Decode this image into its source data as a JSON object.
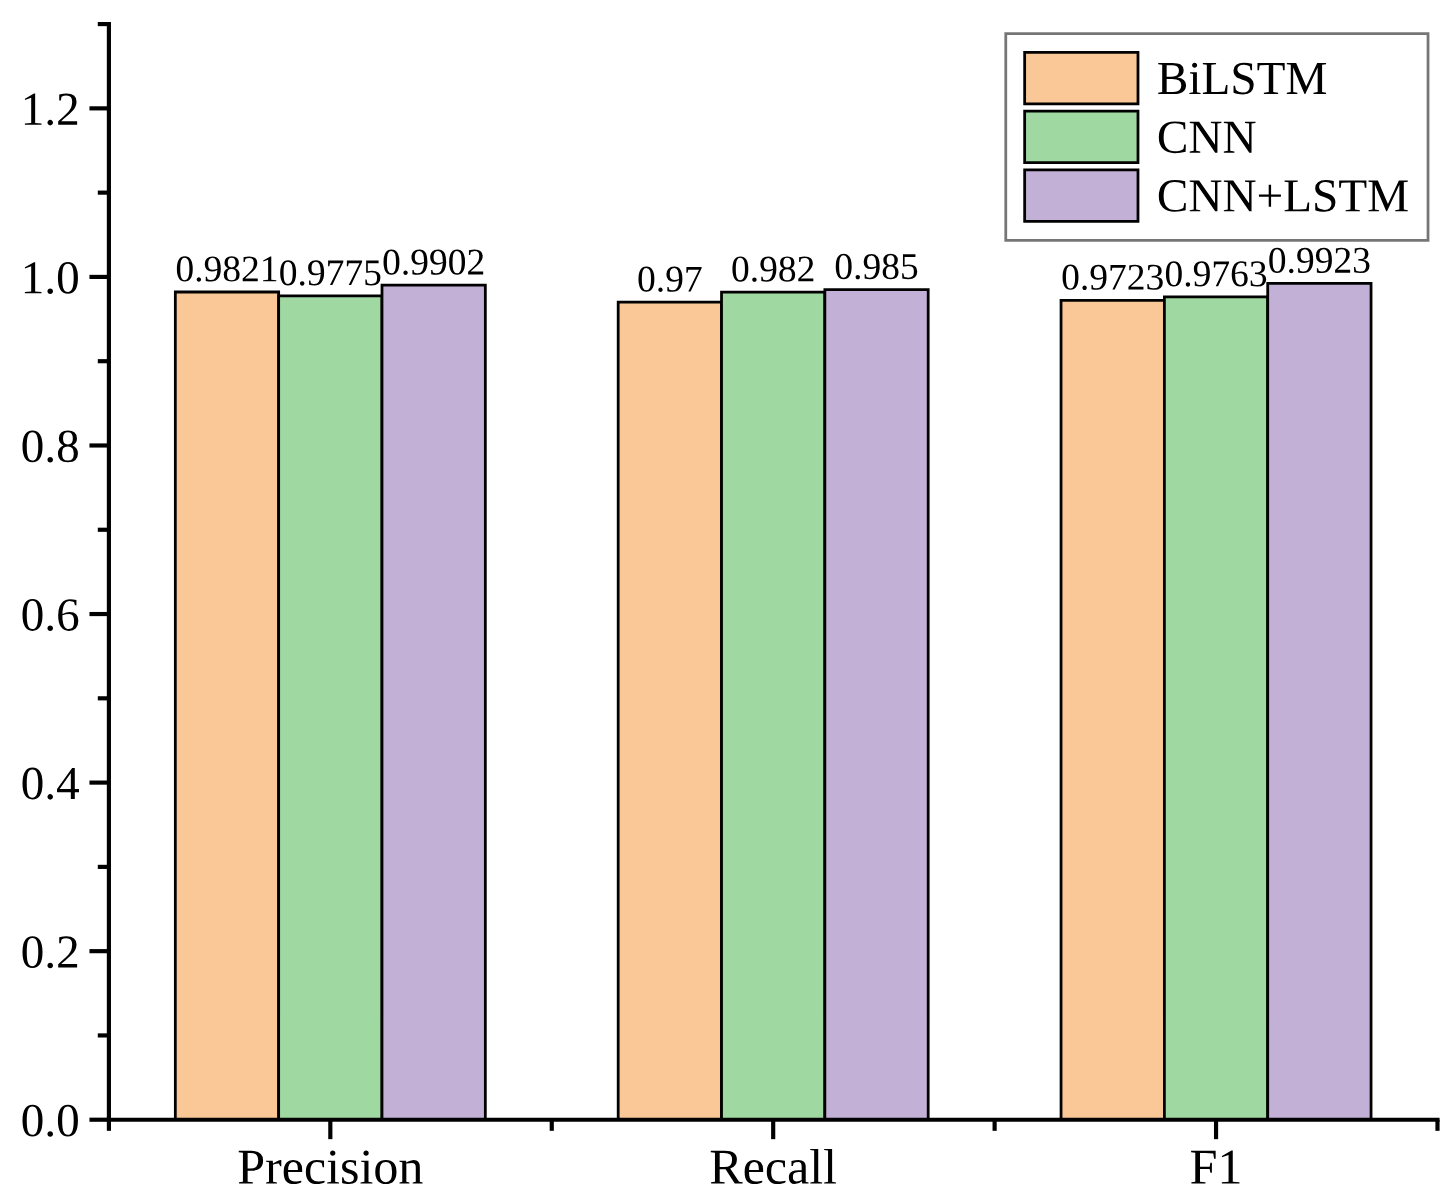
{
  "chart_data": {
    "type": "bar",
    "categories": [
      "Precision",
      "Recall",
      "F1"
    ],
    "series": [
      {
        "name": "BiLSTM",
        "color": "#f9c896",
        "values": [
          0.9821,
          0.97,
          0.9723
        ]
      },
      {
        "name": "CNN",
        "color": "#9fd8a0",
        "values": [
          0.9775,
          0.982,
          0.9763
        ]
      },
      {
        "name": "CNN+LSTM",
        "color": "#c3b0d6",
        "values": [
          0.9902,
          0.985,
          0.9923
        ]
      }
    ],
    "ylim": [
      0,
      1.3
    ],
    "yticks": [
      {
        "value": 0,
        "label": "0.0"
      },
      0.2,
      0.4,
      0.6,
      0.8,
      {
        "value": 1,
        "label": "1.0"
      },
      1.2
    ],
    "data_labels": true,
    "legend": "top right",
    "grid": false
  }
}
